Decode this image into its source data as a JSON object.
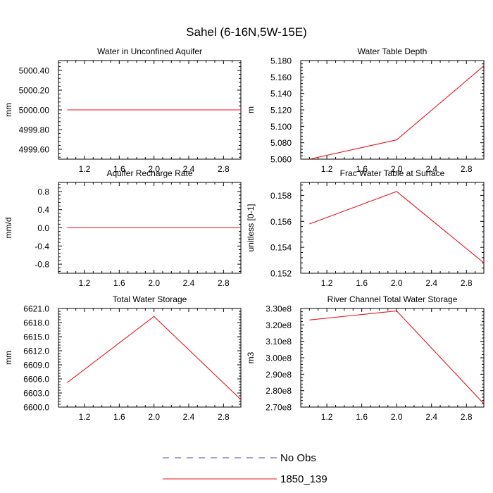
{
  "title": "Sahel (6-16N,5W-15E)",
  "legend": {
    "entries": [
      {
        "label": "No Obs",
        "color": "#4a4aa8",
        "dash": true
      },
      {
        "label": "1850_139",
        "color": "#e8141c",
        "dash": false
      }
    ]
  },
  "chart_data": [
    {
      "type": "line",
      "title": "Water in Unconfined Aquifer",
      "ylabel": "mm",
      "xlim": [
        0.9,
        3.0
      ],
      "ylim": [
        4999.5,
        5000.5
      ],
      "xticks": [
        1.2,
        1.6,
        2.0,
        2.4,
        2.8
      ],
      "xtick_labels": [
        "1.2",
        "1.6",
        "2.0",
        "2.4",
        "2.8"
      ],
      "yticks": [
        4999.6,
        4999.8,
        5000.0,
        5000.2,
        5000.4
      ],
      "ytick_labels": [
        "4999.60",
        "4999.80",
        "5000.00",
        "5000.20",
        "5000.40"
      ],
      "series": [
        {
          "name": "1850_139",
          "color": "#e8141c",
          "x": [
            1.0,
            2.0,
            3.0
          ],
          "y": [
            5000.0,
            5000.0,
            5000.0
          ]
        }
      ]
    },
    {
      "type": "line",
      "title": "Water Table Depth",
      "ylabel": "m",
      "xlim": [
        0.9,
        3.0
      ],
      "ylim": [
        5.06,
        5.18
      ],
      "xticks": [
        1.2,
        1.6,
        2.0,
        2.4,
        2.8
      ],
      "xtick_labels": [
        "1.2",
        "1.6",
        "2.0",
        "2.4",
        "2.8"
      ],
      "yticks": [
        5.06,
        5.08,
        5.1,
        5.12,
        5.14,
        5.16,
        5.18
      ],
      "ytick_labels": [
        "5.060",
        "5.080",
        "5.100",
        "5.120",
        "5.140",
        "5.160",
        "5.180"
      ],
      "series": [
        {
          "name": "1850_139",
          "color": "#e8141c",
          "x": [
            1.0,
            2.0,
            3.0
          ],
          "y": [
            5.06,
            5.0835,
            5.1735
          ]
        }
      ]
    },
    {
      "type": "line",
      "title": "Aquifer Recharge Rate",
      "ylabel": "mm/d",
      "xlim": [
        0.9,
        3.0
      ],
      "ylim": [
        -1.0,
        1.0
      ],
      "xticks": [
        1.2,
        1.6,
        2.0,
        2.4,
        2.8
      ],
      "xtick_labels": [
        "1.2",
        "1.6",
        "2.0",
        "2.4",
        "2.8"
      ],
      "yticks": [
        -0.8,
        -0.4,
        0.0,
        0.4,
        0.8
      ],
      "ytick_labels": [
        "-0.8",
        "-0.4",
        "0.0",
        "0.4",
        "0.8"
      ],
      "series": [
        {
          "name": "1850_139",
          "color": "#e8141c",
          "x": [
            1.0,
            2.0,
            3.0
          ],
          "y": [
            0.0,
            0.0,
            0.0
          ]
        }
      ]
    },
    {
      "type": "line",
      "title": "Frac Water Table at Surface",
      "ylabel": "unitless [0-1]",
      "xlim": [
        0.9,
        3.0
      ],
      "ylim": [
        0.152,
        0.159
      ],
      "xticks": [
        1.2,
        1.6,
        2.0,
        2.4,
        2.8
      ],
      "xtick_labels": [
        "1.2",
        "1.6",
        "2.0",
        "2.4",
        "2.8"
      ],
      "yticks": [
        0.152,
        0.154,
        0.156,
        0.158
      ],
      "ytick_labels": [
        "0.152",
        "0.154",
        "0.156",
        "0.158"
      ],
      "series": [
        {
          "name": "1850_139",
          "color": "#e8141c",
          "x": [
            1.0,
            2.0,
            3.0
          ],
          "y": [
            0.1558,
            0.1583,
            0.1528
          ]
        }
      ]
    },
    {
      "type": "line",
      "title": "Total Water Storage",
      "ylabel": "mm",
      "xlim": [
        0.9,
        3.0
      ],
      "ylim": [
        6600.0,
        6621.0
      ],
      "xticks": [
        1.2,
        1.6,
        2.0,
        2.4,
        2.8
      ],
      "xtick_labels": [
        "1.2",
        "1.6",
        "2.0",
        "2.4",
        "2.8"
      ],
      "yticks": [
        6600.0,
        6603.0,
        6606.0,
        6609.0,
        6612.0,
        6615.0,
        6618.0,
        6621.0
      ],
      "ytick_labels": [
        "6600.0",
        "6603.0",
        "6606.0",
        "6609.0",
        "6612.0",
        "6615.0",
        "6618.0",
        "6621.0"
      ],
      "series": [
        {
          "name": "1850_139",
          "color": "#e8141c",
          "x": [
            1.0,
            2.0,
            3.0
          ],
          "y": [
            6605.2,
            6619.3,
            6601.6
          ]
        }
      ]
    },
    {
      "type": "line",
      "title": "River Channel Total Water Storage",
      "ylabel": "m3",
      "xlim": [
        0.9,
        3.0
      ],
      "ylim": [
        270000000,
        330000000
      ],
      "xticks": [
        1.2,
        1.6,
        2.0,
        2.4,
        2.8
      ],
      "xtick_labels": [
        "1.2",
        "1.6",
        "2.0",
        "2.4",
        "2.8"
      ],
      "yticks": [
        270000000,
        280000000,
        290000000,
        300000000,
        310000000,
        320000000,
        330000000
      ],
      "ytick_labels": [
        "2.70e8",
        "2.80e8",
        "2.90e8",
        "3.00e8",
        "3.10e8",
        "3.20e8",
        "3.30e8"
      ],
      "series": [
        {
          "name": "1850_139",
          "color": "#e8141c",
          "x": [
            1.0,
            2.0,
            3.0
          ],
          "y": [
            323000000,
            328500000,
            272000000
          ]
        }
      ]
    }
  ]
}
